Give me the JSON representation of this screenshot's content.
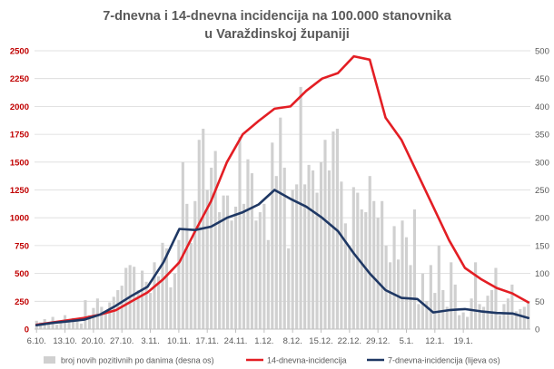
{
  "chart_data": {
    "type": "bar+line",
    "title_lines": [
      "7-dnevna i 14-dnevna incidencija na 100.000 stanovnika",
      "u Varaždinskoj županiji"
    ],
    "y_left": {
      "min": 0,
      "max": 2500,
      "step": 250,
      "ticks": [
        "0",
        "250",
        "500",
        "750",
        "1000",
        "1250",
        "1500",
        "1750",
        "2000",
        "2250",
        "2500"
      ]
    },
    "y_right": {
      "min": 0,
      "max": 500,
      "step": 50,
      "ticks": [
        "0",
        "50",
        "100",
        "150",
        "200",
        "250",
        "300",
        "350",
        "400",
        "450",
        "500"
      ]
    },
    "x_start": "6.10.",
    "x_tick_labels": [
      "6.10.",
      "13.10.",
      "20.10.",
      "27.10.",
      "3.11.",
      "10.11.",
      "17.11.",
      "24.11.",
      "1.12.",
      "8.12.",
      "15.12.",
      "22.12.",
      "29.12.",
      "5.1.",
      "12.1.",
      "19.1."
    ],
    "grid": "horizontal",
    "legend_position": "bottom",
    "colors": {
      "bars": "#d0d0d0",
      "line14": "#e31e24",
      "line7": "#1f3864",
      "left_axis": "#c00000",
      "grid": "#d9d9d9"
    },
    "series": [
      {
        "name": "broj novih pozitivnih po danima (desna os)",
        "type": "bar",
        "axis": "right",
        "values": [
          15,
          12,
          18,
          10,
          22,
          8,
          12,
          25,
          16,
          20,
          14,
          10,
          52,
          25,
          38,
          55,
          40,
          30,
          48,
          58,
          70,
          78,
          110,
          115,
          112,
          70,
          105,
          85,
          65,
          120,
          95,
          155,
          145,
          75,
          100,
          160,
          300,
          225,
          155,
          230,
          340,
          360,
          250,
          290,
          320,
          210,
          240,
          240,
          195,
          220,
          345,
          225,
          305,
          280,
          195,
          210,
          225,
          160,
          335,
          275,
          380,
          290,
          145,
          250,
          260,
          435,
          260,
          295,
          285,
          245,
          300,
          340,
          285,
          355,
          360,
          265,
          190,
          150,
          255,
          245,
          215,
          210,
          275,
          230,
          200,
          230,
          150,
          120,
          185,
          125,
          195,
          165,
          115,
          215,
          45,
          100,
          50,
          115,
          65,
          150,
          70,
          40,
          120,
          80,
          25,
          30,
          22,
          55,
          120,
          45,
          40,
          60,
          70,
          110,
          25,
          45,
          55,
          80,
          32,
          36,
          40,
          50
        ]
      },
      {
        "name": "14-dnevna-incidencija",
        "type": "line",
        "axis": "left",
        "values": [
          40,
          60,
          80,
          100,
          130,
          170,
          250,
          330,
          450,
          600,
          880,
          1150,
          1500,
          1750,
          1870,
          1980,
          2000,
          2140,
          2250,
          2300,
          2450,
          2420,
          1900,
          1700,
          1400,
          1100,
          800,
          550,
          450,
          370,
          320,
          240
        ]
      },
      {
        "name": "7-dnevna-incidencija (lijeva os)",
        "type": "line",
        "axis": "left",
        "values": [
          35,
          55,
          70,
          85,
          130,
          210,
          300,
          380,
          600,
          900,
          890,
          920,
          1000,
          1050,
          1120,
          1250,
          1170,
          1100,
          1000,
          880,
          680,
          500,
          350,
          280,
          270,
          150,
          170,
          180,
          160,
          145,
          140,
          100
        ]
      }
    ]
  }
}
